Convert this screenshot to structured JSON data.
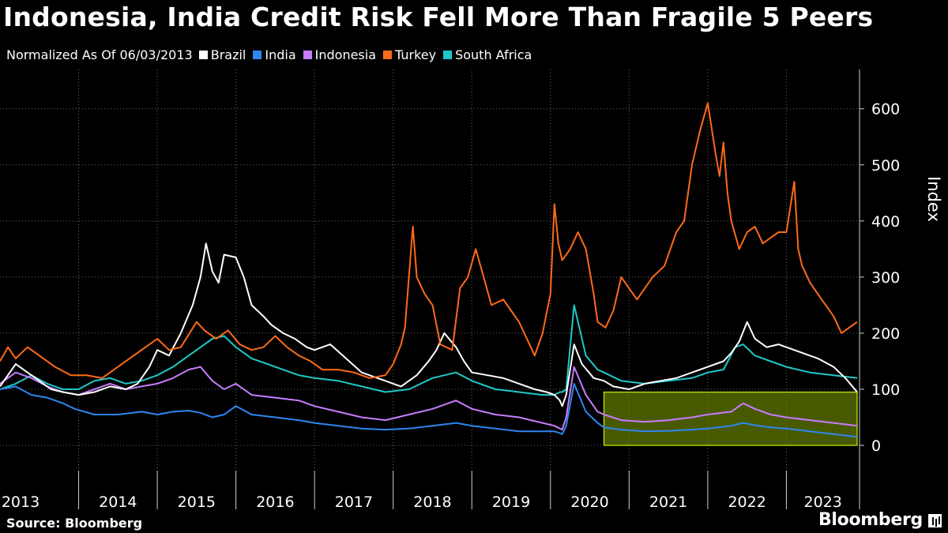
{
  "header": {
    "title": "Indonesia, India Credit Risk Fell More Than Fragile 5 Peers",
    "subtitle": "Normalized As Of 06/03/2013"
  },
  "footer": {
    "source": "Source: Bloomberg",
    "brand": "Bloomberg"
  },
  "colors": {
    "background": "#000000",
    "grid": "#6a6a6a",
    "highlight_fill": "#6f8a00",
    "highlight_stroke": "#c8f000"
  },
  "chart_data": {
    "type": "line",
    "title": "Indonesia, India Credit Risk Fell More Than Fragile 5 Peers",
    "subtitle": "Normalized As Of 06/03/2013",
    "xlabel": "",
    "ylabel": "Index",
    "y_axis_side": "right",
    "ylim": [
      -45,
      670
    ],
    "y_ticks": [
      0,
      100,
      200,
      300,
      400,
      500,
      600
    ],
    "xlim": [
      2013.0,
      2023.93
    ],
    "x_tick_labels": [
      "2013",
      "2014",
      "2015",
      "2016",
      "2017",
      "2018",
      "2019",
      "2020",
      "2021",
      "2022",
      "2023"
    ],
    "grid": true,
    "legend": "top-left",
    "highlight_box": {
      "x_range": [
        2020.68,
        2023.9
      ],
      "y_range": [
        0,
        95
      ]
    },
    "series": [
      {
        "name": "Brazil",
        "color": "#ffffff",
        "x": [
          2013.0,
          2013.1,
          2013.2,
          2013.35,
          2013.5,
          2013.65,
          2013.8,
          2014.0,
          2014.2,
          2014.4,
          2014.6,
          2014.75,
          2014.9,
          2015.0,
          2015.15,
          2015.3,
          2015.45,
          2015.55,
          2015.62,
          2015.7,
          2015.78,
          2015.85,
          2016.0,
          2016.1,
          2016.2,
          2016.35,
          2016.45,
          2016.6,
          2016.75,
          2016.9,
          2017.0,
          2017.2,
          2017.4,
          2017.6,
          2017.8,
          2017.9,
          2018.0,
          2018.1,
          2018.2,
          2018.3,
          2018.45,
          2018.55,
          2018.65,
          2018.8,
          2018.9,
          2019.0,
          2019.2,
          2019.4,
          2019.6,
          2019.8,
          2019.95,
          2020.05,
          2020.12,
          2020.15,
          2020.2,
          2020.3,
          2020.4,
          2020.55,
          2020.68,
          2020.8,
          2021.0,
          2021.2,
          2021.4,
          2021.6,
          2021.8,
          2022.0,
          2022.1,
          2022.2,
          2022.3,
          2022.4,
          2022.5,
          2022.6,
          2022.75,
          2022.9,
          2023.0,
          2023.2,
          2023.4,
          2023.6,
          2023.75,
          2023.9
        ],
        "values": [
          105,
          125,
          145,
          130,
          115,
          100,
          95,
          90,
          95,
          105,
          100,
          110,
          140,
          170,
          160,
          200,
          250,
          300,
          360,
          310,
          290,
          340,
          335,
          300,
          250,
          230,
          215,
          200,
          190,
          175,
          170,
          180,
          155,
          130,
          120,
          115,
          110,
          105,
          115,
          125,
          150,
          170,
          200,
          175,
          150,
          130,
          125,
          120,
          110,
          100,
          95,
          90,
          80,
          70,
          90,
          180,
          145,
          120,
          115,
          105,
          100,
          110,
          115,
          120,
          130,
          140,
          145,
          150,
          165,
          185,
          220,
          190,
          175,
          180,
          175,
          165,
          155,
          140,
          120,
          95
        ]
      },
      {
        "name": "India",
        "color": "#2e86f0",
        "x": [
          2013.0,
          2013.2,
          2013.4,
          2013.6,
          2013.8,
          2013.95,
          2014.2,
          2014.5,
          2014.8,
          2015.0,
          2015.2,
          2015.4,
          2015.55,
          2015.7,
          2015.85,
          2016.0,
          2016.2,
          2016.5,
          2016.8,
          2017.0,
          2017.3,
          2017.6,
          2017.9,
          2018.2,
          2018.5,
          2018.8,
          2019.0,
          2019.3,
          2019.6,
          2019.9,
          2020.05,
          2020.12,
          2020.15,
          2020.2,
          2020.3,
          2020.45,
          2020.6,
          2020.68,
          2020.9,
          2021.2,
          2021.5,
          2021.8,
          2022.0,
          2022.3,
          2022.45,
          2022.6,
          2022.8,
          2023.0,
          2023.3,
          2023.6,
          2023.9
        ],
        "values": [
          100,
          105,
          90,
          85,
          75,
          65,
          55,
          55,
          60,
          55,
          60,
          62,
          58,
          50,
          55,
          70,
          55,
          50,
          45,
          40,
          35,
          30,
          28,
          30,
          35,
          40,
          35,
          30,
          25,
          25,
          25,
          22,
          20,
          35,
          110,
          60,
          40,
          32,
          28,
          25,
          26,
          28,
          30,
          35,
          40,
          36,
          32,
          30,
          25,
          20,
          15
        ]
      },
      {
        "name": "Indonesia",
        "color": "#c77dff",
        "x": [
          2013.0,
          2013.2,
          2013.4,
          2013.6,
          2013.8,
          2014.0,
          2014.2,
          2014.4,
          2014.6,
          2014.8,
          2015.0,
          2015.2,
          2015.4,
          2015.55,
          2015.7,
          2015.85,
          2016.0,
          2016.2,
          2016.5,
          2016.8,
          2017.0,
          2017.3,
          2017.6,
          2017.9,
          2018.2,
          2018.5,
          2018.8,
          2019.0,
          2019.3,
          2019.6,
          2019.9,
          2020.05,
          2020.12,
          2020.15,
          2020.2,
          2020.3,
          2020.45,
          2020.6,
          2020.68,
          2020.9,
          2021.2,
          2021.5,
          2021.8,
          2022.0,
          2022.3,
          2022.45,
          2022.6,
          2022.8,
          2023.0,
          2023.3,
          2023.6,
          2023.9
        ],
        "values": [
          110,
          130,
          120,
          105,
          95,
          90,
          100,
          110,
          100,
          105,
          110,
          120,
          135,
          140,
          115,
          100,
          110,
          90,
          85,
          80,
          70,
          60,
          50,
          45,
          55,
          65,
          80,
          65,
          55,
          50,
          40,
          35,
          30,
          28,
          50,
          140,
          90,
          60,
          55,
          45,
          42,
          45,
          50,
          55,
          60,
          75,
          65,
          55,
          50,
          45,
          40,
          35
        ]
      },
      {
        "name": "Turkey",
        "color": "#ff6a1a",
        "x": [
          2013.0,
          2013.1,
          2013.2,
          2013.35,
          2013.5,
          2013.7,
          2013.9,
          2014.1,
          2014.3,
          2014.5,
          2014.7,
          2014.85,
          2015.0,
          2015.15,
          2015.3,
          2015.5,
          2015.6,
          2015.75,
          2015.9,
          2016.05,
          2016.2,
          2016.35,
          2016.5,
          2016.65,
          2016.8,
          2016.95,
          2017.1,
          2017.3,
          2017.5,
          2017.7,
          2017.9,
          2018.0,
          2018.1,
          2018.15,
          2018.2,
          2018.25,
          2018.3,
          2018.4,
          2018.5,
          2018.6,
          2018.75,
          2018.85,
          2018.95,
          2019.05,
          2019.15,
          2019.25,
          2019.4,
          2019.5,
          2019.6,
          2019.7,
          2019.8,
          2019.9,
          2020.0,
          2020.05,
          2020.1,
          2020.15,
          2020.25,
          2020.35,
          2020.45,
          2020.55,
          2020.6,
          2020.7,
          2020.8,
          2020.9,
          2021.0,
          2021.1,
          2021.2,
          2021.3,
          2021.45,
          2021.6,
          2021.7,
          2021.8,
          2021.9,
          2022.0,
          2022.1,
          2022.15,
          2022.2,
          2022.25,
          2022.3,
          2022.4,
          2022.5,
          2022.6,
          2022.7,
          2022.8,
          2022.9,
          2023.0,
          2023.1,
          2023.15,
          2023.2,
          2023.3,
          2023.4,
          2023.5,
          2023.6,
          2023.7,
          2023.8,
          2023.9
        ],
        "values": [
          150,
          175,
          155,
          175,
          160,
          140,
          125,
          125,
          120,
          140,
          160,
          175,
          190,
          170,
          175,
          220,
          205,
          190,
          205,
          180,
          170,
          175,
          195,
          175,
          160,
          150,
          135,
          135,
          130,
          120,
          125,
          145,
          180,
          210,
          300,
          390,
          300,
          270,
          250,
          180,
          170,
          280,
          300,
          350,
          300,
          250,
          260,
          240,
          220,
          190,
          160,
          200,
          270,
          430,
          360,
          330,
          350,
          380,
          350,
          270,
          220,
          210,
          240,
          300,
          280,
          260,
          280,
          300,
          320,
          380,
          400,
          500,
          560,
          610,
          520,
          480,
          540,
          450,
          400,
          350,
          380,
          390,
          360,
          370,
          380,
          380,
          470,
          350,
          320,
          290,
          270,
          250,
          230,
          200,
          210,
          220
        ]
      },
      {
        "name": "South Africa",
        "color": "#20c8c8",
        "x": [
          2013.0,
          2013.2,
          2013.4,
          2013.6,
          2013.8,
          2014.0,
          2014.2,
          2014.4,
          2014.6,
          2014.8,
          2015.0,
          2015.2,
          2015.4,
          2015.55,
          2015.7,
          2015.85,
          2016.0,
          2016.2,
          2016.5,
          2016.8,
          2017.0,
          2017.3,
          2017.6,
          2017.9,
          2018.2,
          2018.5,
          2018.8,
          2019.0,
          2019.3,
          2019.6,
          2019.9,
          2020.05,
          2020.12,
          2020.15,
          2020.2,
          2020.3,
          2020.45,
          2020.6,
          2020.68,
          2020.9,
          2021.2,
          2021.5,
          2021.8,
          2022.0,
          2022.2,
          2022.35,
          2022.45,
          2022.6,
          2022.8,
          2023.0,
          2023.3,
          2023.6,
          2023.9
        ],
        "values": [
          100,
          110,
          125,
          110,
          100,
          100,
          115,
          120,
          110,
          115,
          125,
          140,
          160,
          175,
          190,
          195,
          175,
          155,
          140,
          125,
          120,
          115,
          105,
          95,
          100,
          120,
          130,
          115,
          100,
          95,
          90,
          90,
          95,
          95,
          100,
          250,
          160,
          135,
          130,
          115,
          110,
          115,
          120,
          130,
          135,
          175,
          180,
          160,
          150,
          140,
          130,
          125,
          120
        ]
      }
    ]
  }
}
